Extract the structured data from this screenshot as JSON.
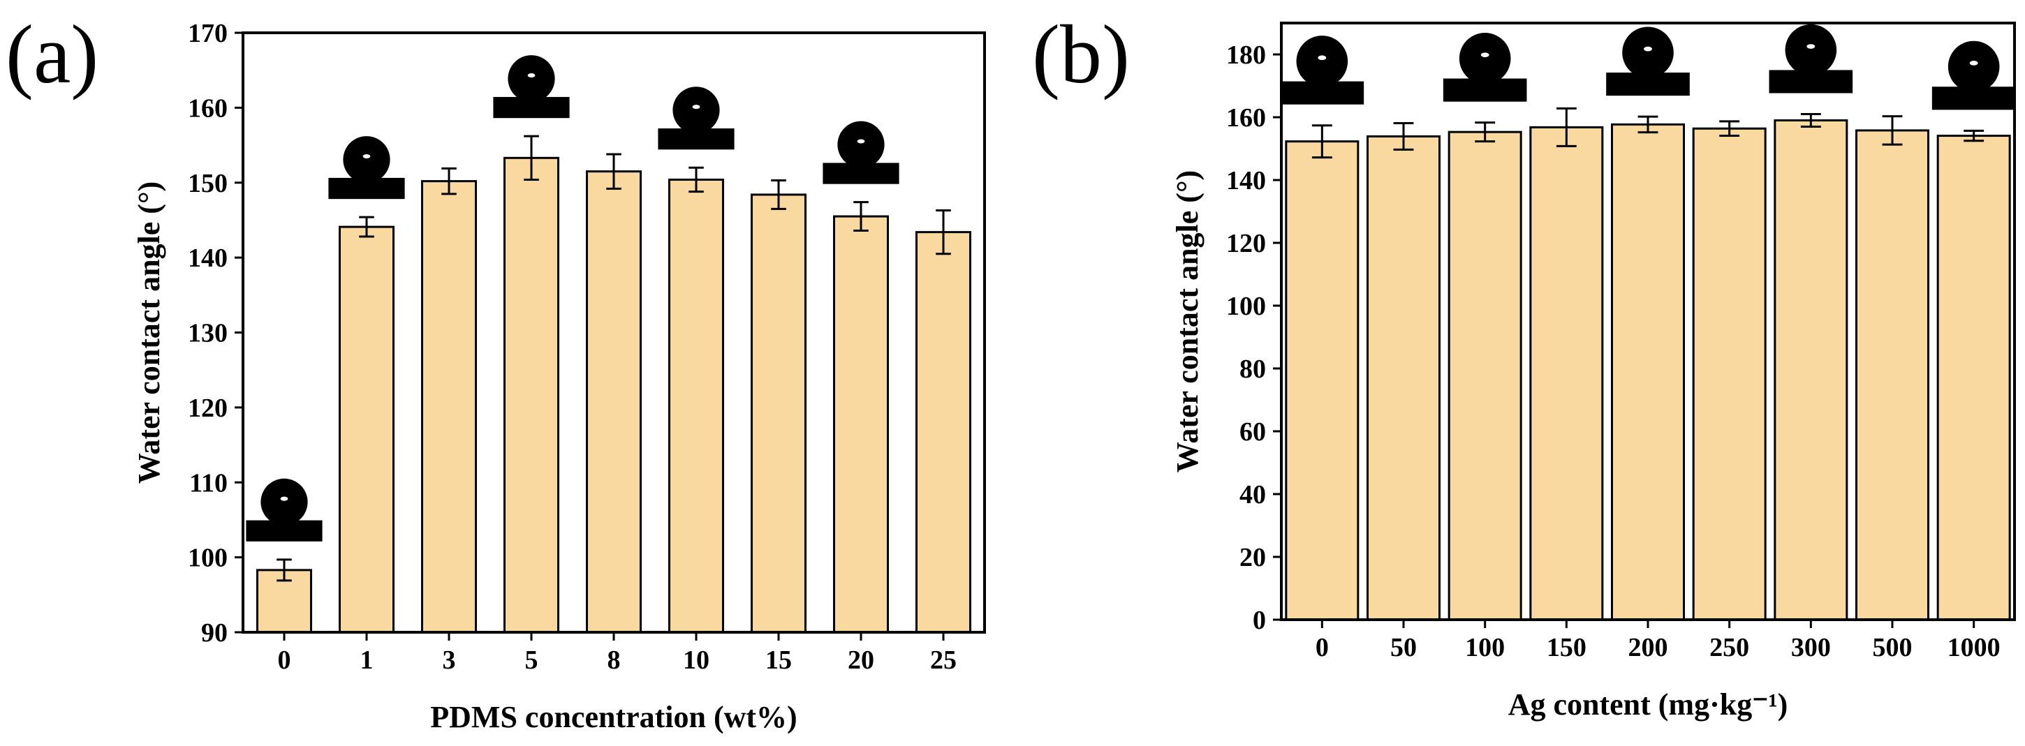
{
  "chart_data": [
    {
      "panel": "(a)",
      "type": "bar",
      "categories": [
        "0",
        "1",
        "3",
        "5",
        "8",
        "10",
        "15",
        "20",
        "25"
      ],
      "values": [
        98.3,
        144.1,
        150.2,
        153.3,
        151.5,
        150.4,
        148.4,
        145.5,
        143.4
      ],
      "errors": [
        1.4,
        1.3,
        1.7,
        2.9,
        2.3,
        1.6,
        1.9,
        1.9,
        2.9
      ],
      "droplet_insets_at": [
        "0",
        "1",
        "5",
        "10",
        "20"
      ],
      "xlabel": "PDMS concentration (wt%)",
      "ylabel": "Water contact angle (°)",
      "ylim": [
        90,
        170
      ],
      "yticks": [
        90,
        100,
        110,
        120,
        130,
        140,
        150,
        160,
        170
      ],
      "bar_color": "#fad9a1"
    },
    {
      "panel": "(b)",
      "type": "bar",
      "categories": [
        "0",
        "50",
        "100",
        "150",
        "200",
        "250",
        "300",
        "500",
        "1000"
      ],
      "values": [
        152.3,
        153.9,
        155.3,
        156.8,
        157.7,
        156.4,
        159.0,
        155.8,
        154.1
      ],
      "errors": [
        5.1,
        4.2,
        3.0,
        6.0,
        2.5,
        2.3,
        2.0,
        4.5,
        1.6
      ],
      "droplet_insets_at": [
        "0",
        "100",
        "200",
        "300",
        "1000"
      ],
      "xlabel": "Ag content (mg·kg⁻¹)",
      "ylabel": "Water contact angle (°)",
      "ylim": [
        0,
        190
      ],
      "yticks": [
        0,
        20,
        40,
        60,
        80,
        100,
        120,
        140,
        160,
        180
      ],
      "bar_color": "#fad9a1"
    }
  ]
}
